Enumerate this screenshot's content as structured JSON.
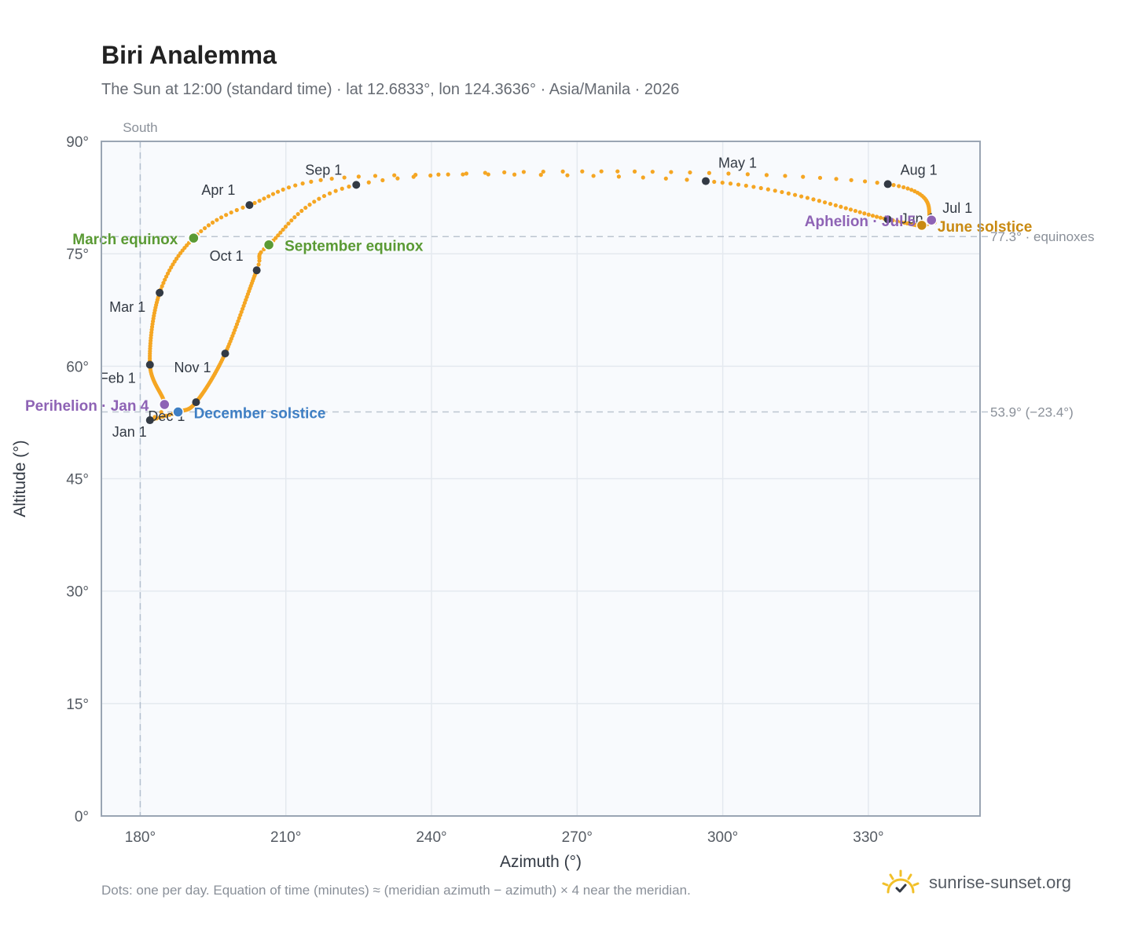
{
  "page": {
    "title": "Biri Analemma",
    "subtitle": "The Sun at 12:00 (standard time) · lat 12.6833°, lon 124.3636° · Asia/Manila · 2026",
    "footnote": "Dots: one per day. Equation of time (minutes) ≈ (meridian azimuth − azimuth) × 4 near the meridian.",
    "brand": "sunrise-sunset.org",
    "colors": {
      "path": "#f5a623",
      "month_dot": "#333a44",
      "equinox": "#5a9a34",
      "december_solstice": "#3f7fc4",
      "june_solstice": "#c98a12",
      "apsis": "#8e63b5",
      "plot_bg": "#f8fafd",
      "grid": "#e4e9ef",
      "axis": "#9aa5b3"
    }
  },
  "chart_data": {
    "type": "scatter",
    "title": "Biri Analemma",
    "xlabel": "Azimuth (°)",
    "ylabel": "Altitude (°)",
    "xlim": [
      172,
      353
    ],
    "ylim": [
      0,
      90
    ],
    "xticks": [
      180,
      210,
      240,
      270,
      300,
      330
    ],
    "xtick_labels": [
      "180°",
      "210°",
      "240°",
      "270°",
      "300°",
      "330°"
    ],
    "yticks": [
      0,
      15,
      30,
      45,
      60,
      75,
      90
    ],
    "ytick_labels": [
      "0°",
      "15°",
      "30°",
      "45°",
      "60°",
      "75°",
      "90°"
    ],
    "grid": true,
    "meridian": {
      "azimuth": 180,
      "label": "South"
    },
    "reference_lines": [
      {
        "altitude": 77.3,
        "label": "77.3° · equinoxes"
      },
      {
        "altitude": 53.9,
        "label": "53.9° (−23.4°)"
      }
    ],
    "path_keypoints": [
      {
        "day": 1,
        "az": 182.0,
        "alt": 52.8
      },
      {
        "day": 4,
        "az": 185.0,
        "alt": 54.9
      },
      {
        "day": 32,
        "az": 182.0,
        "alt": 60.2
      },
      {
        "day": 60,
        "az": 184.0,
        "alt": 69.8
      },
      {
        "day": 79,
        "az": 191.0,
        "alt": 77.1
      },
      {
        "day": 91,
        "az": 202.5,
        "alt": 81.5
      },
      {
        "day": 106,
        "az": 225.0,
        "alt": 85.3
      },
      {
        "day": 121,
        "az": 296.5,
        "alt": 84.7
      },
      {
        "day": 152,
        "az": 334.0,
        "alt": 79.6
      },
      {
        "day": 172,
        "az": 341.0,
        "alt": 78.8
      },
      {
        "day": 182,
        "az": 343.0,
        "alt": 79.5
      },
      {
        "day": 186,
        "az": 343.0,
        "alt": 79.5
      },
      {
        "day": 213,
        "az": 334.0,
        "alt": 84.3
      },
      {
        "day": 230,
        "az": 275.0,
        "alt": 86.0
      },
      {
        "day": 244,
        "az": 224.5,
        "alt": 84.2
      },
      {
        "day": 266,
        "az": 206.5,
        "alt": 76.2
      },
      {
        "day": 274,
        "az": 204.0,
        "alt": 72.8
      },
      {
        "day": 305,
        "az": 197.5,
        "alt": 61.7
      },
      {
        "day": 335,
        "az": 191.5,
        "alt": 55.2
      },
      {
        "day": 355,
        "az": 187.8,
        "alt": 53.9
      },
      {
        "day": 365,
        "az": 182.0,
        "alt": 52.8
      }
    ],
    "month_points": [
      {
        "label": "Jan 1",
        "az": 182.0,
        "alt": 52.8
      },
      {
        "label": "Feb 1",
        "az": 182.0,
        "alt": 60.2
      },
      {
        "label": "Mar 1",
        "az": 184.0,
        "alt": 69.8
      },
      {
        "label": "Apr 1",
        "az": 202.5,
        "alt": 81.5
      },
      {
        "label": "May 1",
        "az": 296.5,
        "alt": 84.7
      },
      {
        "label": "Jun 1",
        "az": 334.0,
        "alt": 79.6
      },
      {
        "label": "Jul 1",
        "az": 343.0,
        "alt": 79.5
      },
      {
        "label": "Aug 1",
        "az": 334.0,
        "alt": 84.3
      },
      {
        "label": "Sep 1",
        "az": 224.5,
        "alt": 84.2
      },
      {
        "label": "Oct 1",
        "az": 204.0,
        "alt": 72.8
      },
      {
        "label": "Nov 1",
        "az": 197.5,
        "alt": 61.7
      },
      {
        "label": "Dec 1",
        "az": 191.5,
        "alt": 55.2
      }
    ],
    "events": [
      {
        "label": "March equinox",
        "az": 191.0,
        "alt": 77.1,
        "kind": "equinox"
      },
      {
        "label": "September equinox",
        "az": 206.5,
        "alt": 76.2,
        "kind": "equinox"
      },
      {
        "label": "December solstice",
        "az": 187.8,
        "alt": 53.9,
        "kind": "december_solstice"
      },
      {
        "label": "June solstice",
        "az": 341.0,
        "alt": 78.8,
        "kind": "june_solstice"
      },
      {
        "label": "Perihelion · Jan 4",
        "az": 185.0,
        "alt": 54.9,
        "kind": "apsis"
      },
      {
        "label": "Aphelion · Jul 5",
        "az": 343.0,
        "alt": 79.5,
        "kind": "apsis"
      }
    ]
  }
}
